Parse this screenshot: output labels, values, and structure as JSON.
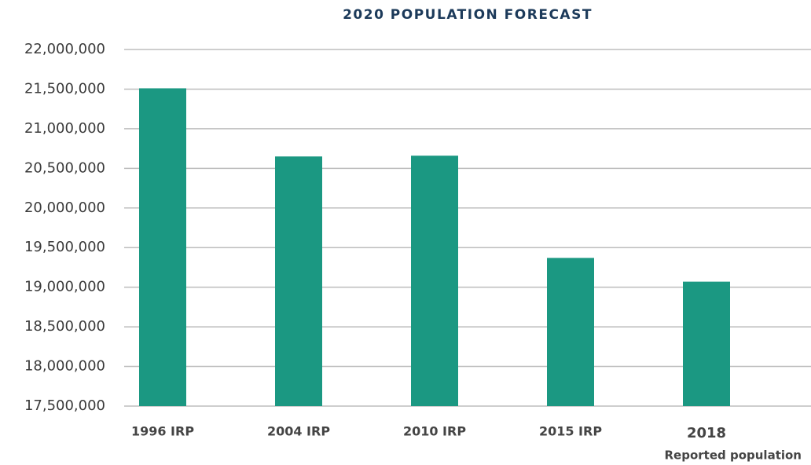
{
  "chart_data": {
    "type": "bar",
    "title": "2020 POPULATION FORECAST",
    "categories": [
      "1996 IRP",
      "2004 IRP",
      "2010 IRP",
      "2015 IRP",
      "2018"
    ],
    "category_note": "Reported population",
    "values": [
      21510000,
      20650000,
      20660000,
      19370000,
      19070000
    ],
    "color": "#1b9882",
    "ylim": [
      17500000,
      22000000
    ],
    "yticks": [
      {
        "value": 17500000,
        "label": "17,500,000"
      },
      {
        "value": 18000000,
        "label": "18,000,000"
      },
      {
        "value": 18500000,
        "label": "18,500,000"
      },
      {
        "value": 19000000,
        "label": "19,000,000"
      },
      {
        "value": 19500000,
        "label": "19,500,000"
      },
      {
        "value": 20000000,
        "label": "20,000,000"
      },
      {
        "value": 20500000,
        "label": "20,500,000"
      },
      {
        "value": 21000000,
        "label": "21,000,000"
      },
      {
        "value": 21500000,
        "label": "21,500,000"
      },
      {
        "value": 22000000,
        "label": "22,000,000"
      }
    ],
    "grid": true
  }
}
